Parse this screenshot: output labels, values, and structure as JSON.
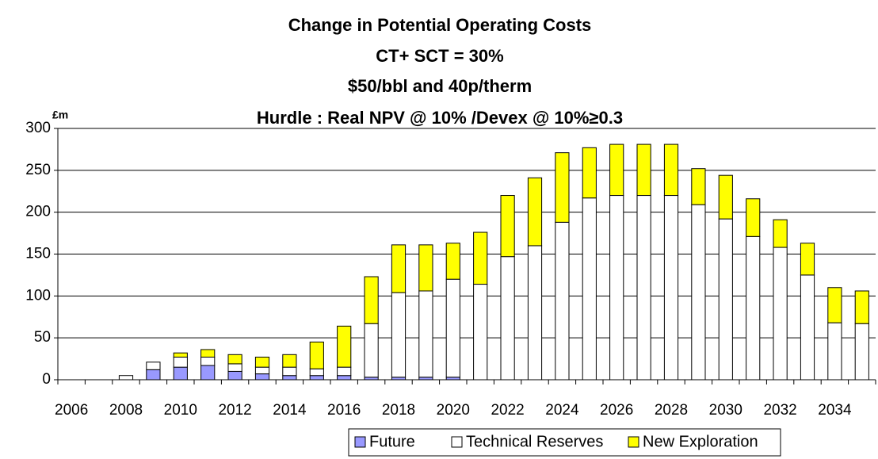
{
  "chart_data": {
    "type": "stacked_bar",
    "title": [
      "Change in Potential Operating Costs",
      "CT+ SCT = 30%",
      "$50/bbl and 40p/therm",
      "Hurdle : Real NPV @ 10% /Devex @ 10%≥0.3"
    ],
    "y_label": "£m",
    "categories": [
      "2006",
      null,
      "2008",
      null,
      "2010",
      null,
      "2012",
      null,
      "2014",
      null,
      "2016",
      null,
      "2018",
      null,
      "2020",
      null,
      "2022",
      null,
      "2024",
      null,
      "2026",
      null,
      "2028",
      null,
      "2030",
      null,
      "2032",
      null,
      "2034",
      null
    ],
    "series": [
      {
        "name": "Future",
        "color": "#9999ff",
        "values": [
          0,
          0,
          0,
          12,
          15,
          17,
          10,
          7,
          5,
          5,
          5,
          3,
          3,
          3,
          3,
          0,
          0,
          0,
          0,
          0,
          0,
          0,
          0,
          0,
          0,
          0,
          0,
          0,
          0,
          0
        ]
      },
      {
        "name": "Technical Reserves",
        "color": "#ffffff",
        "values": [
          0,
          0,
          5,
          9,
          12,
          10,
          9,
          8,
          10,
          8,
          10,
          64,
          101,
          103,
          117,
          114,
          147,
          160,
          188,
          217,
          220,
          220,
          220,
          209,
          192,
          171,
          158,
          125,
          68,
          67
        ]
      },
      {
        "name": "New Exploration",
        "color": "#ffff00",
        "values": [
          0,
          0,
          0,
          0,
          5,
          9,
          11,
          12,
          15,
          32,
          49,
          56,
          57,
          55,
          43,
          62,
          73,
          81,
          83,
          60,
          61,
          61,
          61,
          43,
          52,
          45,
          33,
          38,
          42,
          39
        ]
      }
    ],
    "ylim": [
      0,
      300
    ],
    "yticks": [
      0,
      50,
      100,
      150,
      200,
      250,
      300
    ],
    "grid": true,
    "legend": "bottom"
  }
}
